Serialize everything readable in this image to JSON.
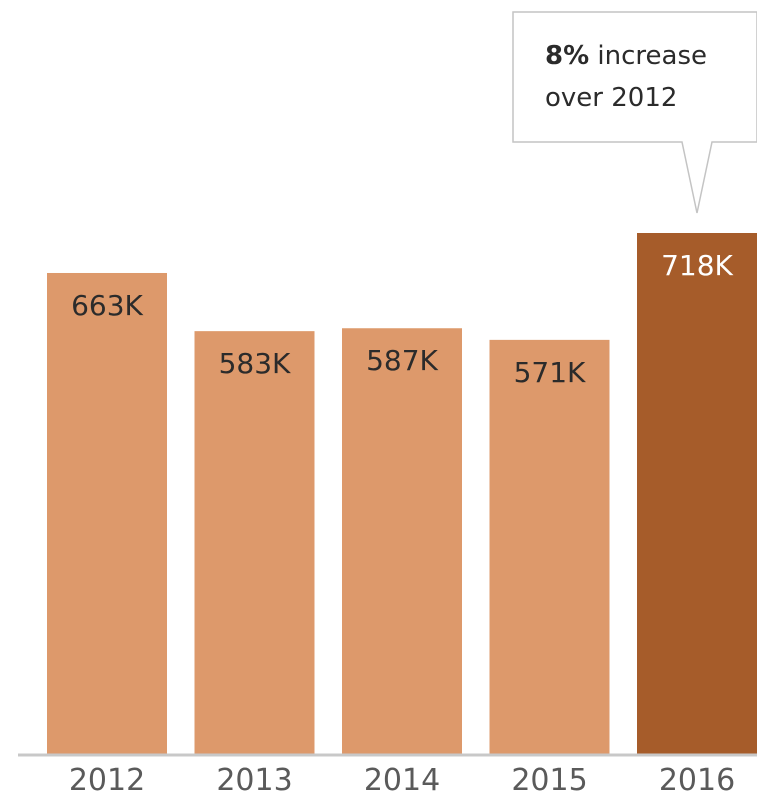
{
  "chart_data": {
    "type": "bar",
    "categories": [
      "2012",
      "2013",
      "2014",
      "2015",
      "2016"
    ],
    "values": [
      663,
      583,
      587,
      571,
      718
    ],
    "value_labels": [
      "663K",
      "583K",
      "587K",
      "571K",
      "718K"
    ],
    "highlight_index": 4,
    "ylim": [
      0,
      718
    ],
    "colors": {
      "bar": "#dd996b",
      "highlight": "#a65c2a",
      "label": "#2b2b2b",
      "highlight_label": "#ffffff",
      "axis": "#c8c8c8"
    },
    "annotation": {
      "bold_text": "8%",
      "line1_rest": " increase",
      "line2": "over 2012",
      "target_index": 4
    }
  }
}
